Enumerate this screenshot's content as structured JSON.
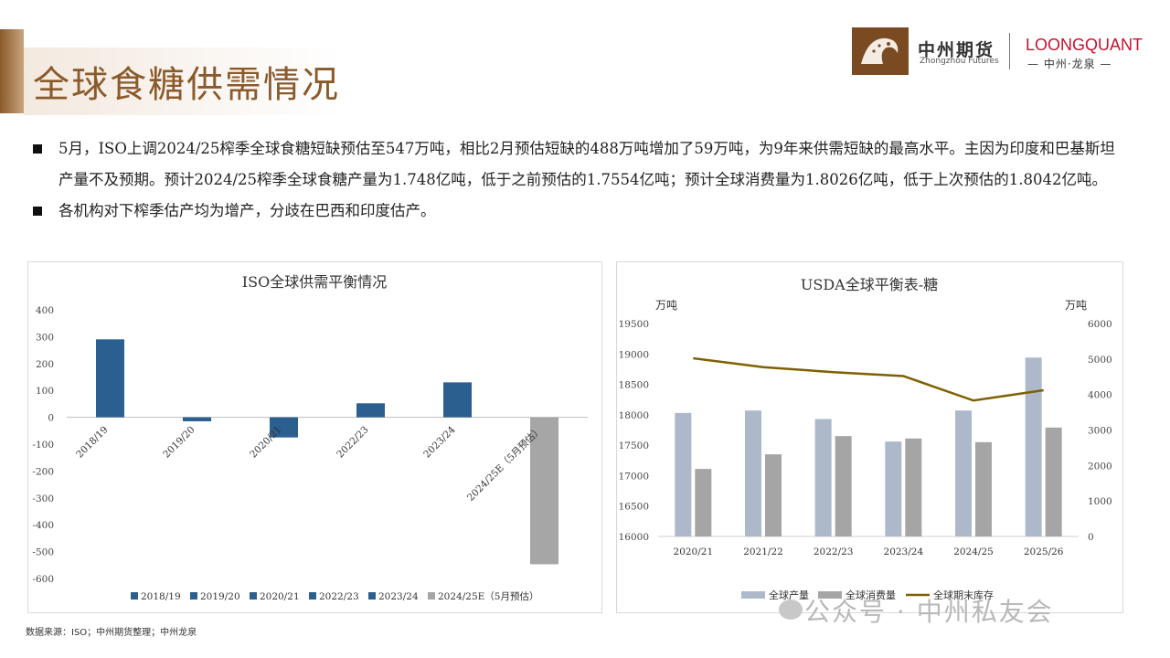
{
  "header": {
    "title": "全球食糖供需情况",
    "logo_cn": "中州期货",
    "logo_en": "Zhongzhou Futures",
    "logo_lq": "LOONGQUANT",
    "logo_lq_sub": "— 中州·龙泉 —"
  },
  "bullets": [
    "5月，ISO上调2024/25榨季全球食糖短缺预估至547万吨，相比2月预估短缺的488万吨增加了59万吨，为9年来供需短缺的最高水平。主因为印度和巴基斯坦产量不及预期。预计2024/25榨季全球食糖产量为1.748亿吨，低于之前预估的1.7554亿吨；预计全球消费量为1.8026亿吨，低于上次预估的1.8042亿吨。",
    "各机构对下榨季估产均为增产，分歧在巴西和印度估产。"
  ],
  "footer": {
    "source": "数据来源：ISO；中州期货整理；中州龙泉",
    "watermark": "公众号 · 中州私友会"
  },
  "colors": {
    "brand": "#8b5a2b",
    "blue": "#2b5f8f",
    "gray": "#a6a6a6",
    "prod": "#adb9ca",
    "cons": "#a5a5a5",
    "stock": "#7f6000"
  },
  "chart_data": [
    {
      "type": "bar",
      "title": "ISO全球供需平衡情况",
      "categories": [
        "2018/19",
        "2019/20",
        "2020/21",
        "2022/23",
        "2023/24",
        "2024/25E（5月预估）"
      ],
      "values": [
        290,
        -15,
        -75,
        52,
        130,
        -547
      ],
      "ylim": [
        -600,
        400
      ],
      "yticks": [
        400,
        300,
        200,
        100,
        0,
        -100,
        -200,
        -300,
        -400,
        -500,
        -600
      ],
      "legend": [
        "2018/19",
        "2019/20",
        "2020/21",
        "2022/23",
        "2023/24",
        "2024/25E（5月预估）"
      ],
      "legend_position": "bottom",
      "grid": false
    },
    {
      "type": "bar",
      "title": "USDA全球平衡表-糖",
      "ylabel_left": "万吨",
      "ylabel_right": "万吨",
      "categories": [
        "2020/21",
        "2021/22",
        "2022/23",
        "2023/24",
        "2024/25",
        "2025/26"
      ],
      "series": [
        {
          "name": "全球产量",
          "type": "bar",
          "axis": "left",
          "values": [
            18030,
            18070,
            17930,
            17560,
            18070,
            18940
          ]
        },
        {
          "name": "全球消费量",
          "type": "bar",
          "axis": "left",
          "values": [
            17110,
            17350,
            17650,
            17610,
            17550,
            17790
          ]
        },
        {
          "name": "全球期末库存",
          "type": "line",
          "axis": "right",
          "values": [
            5020,
            4770,
            4630,
            4520,
            3830,
            4120
          ]
        }
      ],
      "ylim_left": [
        16000,
        19500
      ],
      "yticks_left": [
        19500,
        19000,
        18500,
        18000,
        17500,
        17000,
        16500,
        16000
      ],
      "ylim_right": [
        0,
        6000
      ],
      "yticks_right": [
        6000,
        5000,
        4000,
        3000,
        2000,
        1000,
        0
      ],
      "legend_position": "bottom",
      "grid": false
    }
  ]
}
